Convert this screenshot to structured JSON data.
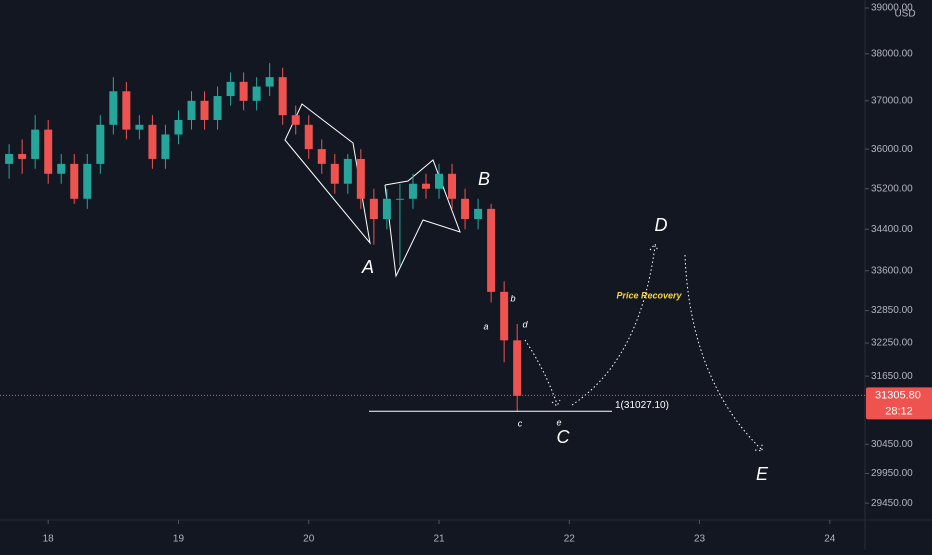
{
  "chart_data": {
    "type": "candlestick",
    "x": [
      17.7,
      17.8,
      17.9,
      18.0,
      18.1,
      18.2,
      18.3,
      18.4,
      18.5,
      18.6,
      18.7,
      18.8,
      18.9,
      19.0,
      19.1,
      19.2,
      19.3,
      19.4,
      19.5,
      19.6,
      19.7,
      19.8,
      19.9,
      20.0,
      20.1,
      20.2,
      20.3,
      20.4,
      20.5,
      20.6,
      20.7,
      20.8,
      20.9,
      21.0,
      21.1,
      21.2,
      21.3,
      21.4,
      21.5,
      21.6
    ],
    "open": [
      35700,
      35900,
      35800,
      36400,
      35500,
      35700,
      35000,
      35700,
      36500,
      37200,
      36400,
      36500,
      35800,
      36300,
      36600,
      37000,
      36600,
      37100,
      37400,
      37000,
      37300,
      37500,
      36700,
      36500,
      36000,
      35700,
      35300,
      35800,
      35000,
      34600,
      35000,
      35000,
      35300,
      35200,
      35500,
      35000,
      34600,
      34800,
      33200,
      32300
    ],
    "high": [
      36100,
      36200,
      36700,
      36600,
      35900,
      35900,
      35900,
      36700,
      37500,
      37400,
      36700,
      36700,
      36500,
      36800,
      37200,
      37200,
      37300,
      37600,
      37600,
      37500,
      37800,
      37700,
      36900,
      36700,
      36200,
      35900,
      35900,
      36000,
      35200,
      35200,
      35300,
      35500,
      35500,
      35700,
      35700,
      35200,
      35000,
      34900,
      33400,
      32600
    ],
    "low": [
      35400,
      35500,
      35600,
      35300,
      35300,
      34900,
      34800,
      35500,
      36300,
      36200,
      36200,
      35600,
      35600,
      36100,
      36400,
      36400,
      36400,
      36900,
      36800,
      36800,
      37100,
      36500,
      36300,
      35800,
      35500,
      35100,
      35100,
      34800,
      34100,
      34400,
      33700,
      34800,
      35000,
      35000,
      34800,
      34400,
      34400,
      33000,
      31900,
      31027
    ],
    "close": [
      35900,
      35800,
      36400,
      35500,
      35700,
      35000,
      35700,
      36500,
      37200,
      36400,
      36500,
      35800,
      36300,
      36600,
      37000,
      36600,
      37100,
      37400,
      37000,
      37300,
      37500,
      36700,
      36500,
      36000,
      35700,
      35300,
      35800,
      35000,
      34600,
      35000,
      35000,
      35300,
      35200,
      35500,
      35000,
      34600,
      34800,
      33200,
      32300,
      31300
    ],
    "up_color": "#26a69a",
    "down_color": "#ef5350",
    "log_scale": true,
    "xlim": [
      17.63,
      24.27
    ],
    "xticks": [
      18,
      19,
      20,
      21,
      22,
      23,
      24
    ],
    "ylim": [
      29170,
      39000
    ],
    "yticks": [
      {
        "value": 39000,
        "label": "39000.00"
      },
      {
        "value": 38000,
        "label": "38000.00"
      },
      {
        "value": 37000,
        "label": "37000.00"
      },
      {
        "value": 36000,
        "label": "36000.00"
      },
      {
        "value": 35200,
        "label": "35200.00"
      },
      {
        "value": 34400,
        "label": "34400.00"
      },
      {
        "value": 33600,
        "label": "33600.00"
      },
      {
        "value": 32850,
        "label": "32850.00"
      },
      {
        "value": 32250,
        "label": "32250.00"
      },
      {
        "value": 31650,
        "label": "31650.00"
      },
      {
        "value": 30450,
        "label": "30450.00"
      },
      {
        "value": 29950,
        "label": "29950.00"
      },
      {
        "value": 29450,
        "label": "29450.00"
      }
    ],
    "currency": "USD",
    "last_price": {
      "value": 31305.8,
      "label": "31305.80"
    },
    "countdown": "28:12",
    "level": {
      "value": 31027.1,
      "label": "1(31027.10)"
    },
    "annotations": [
      "A",
      "B",
      "C",
      "D",
      "E",
      "a",
      "b",
      "c",
      "d",
      "e",
      "Price Recovery"
    ]
  }
}
